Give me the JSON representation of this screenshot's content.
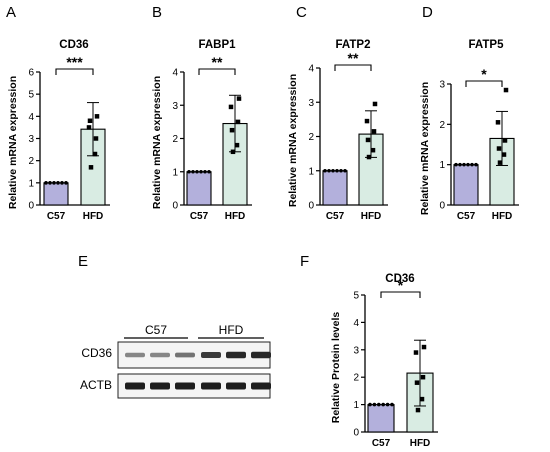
{
  "chart_data": [
    {
      "panel": "A",
      "type": "bar",
      "title": "CD36",
      "ylabel": "Relative mRNA expression",
      "categories": [
        "C57",
        "HFD"
      ],
      "values": [
        1.0,
        3.42
      ],
      "error": [
        0.0,
        1.2
      ],
      "points": [
        [
          1,
          1,
          1,
          1,
          1,
          1
        ],
        [
          4.0,
          3.5,
          3.0,
          3.8,
          2.3,
          1.7
        ]
      ],
      "ylim": [
        0,
        6
      ],
      "yticks": [
        "0",
        "1",
        "2",
        "3",
        "4",
        "5",
        "6"
      ],
      "significance": "***",
      "colors": [
        "#b3b0dc",
        "#d9ece3"
      ]
    },
    {
      "panel": "B",
      "type": "bar",
      "title": "FABP1",
      "ylabel": "Relative mRNA expression",
      "categories": [
        "C57",
        "HFD"
      ],
      "values": [
        1.0,
        2.45
      ],
      "error": [
        0.0,
        0.85
      ],
      "points": [
        [
          1,
          1,
          1,
          1,
          1,
          1
        ],
        [
          3.2,
          2.95,
          2.5,
          2.25,
          1.8,
          1.6
        ]
      ],
      "ylim": [
        0,
        4
      ],
      "yticks": [
        "0",
        "1",
        "2",
        "3",
        "4"
      ],
      "significance": "**",
      "colors": [
        "#b3b0dc",
        "#d9ece3"
      ]
    },
    {
      "panel": "C",
      "type": "bar",
      "title": "FATP2",
      "ylabel": "Relative mRNA expression",
      "categories": [
        "C57",
        "HFD"
      ],
      "values": [
        1.0,
        2.07
      ],
      "error": [
        0.0,
        0.68
      ],
      "points": [
        [
          1,
          1,
          1,
          1,
          1,
          1
        ],
        [
          2.95,
          2.45,
          2.15,
          1.9,
          1.6,
          1.4
        ]
      ],
      "ylim": [
        0,
        4
      ],
      "yticks": [
        "0",
        "1",
        "2",
        "3",
        "4"
      ],
      "significance": "**",
      "colors": [
        "#b3b0dc",
        "#d9ece3"
      ]
    },
    {
      "panel": "D",
      "type": "bar",
      "title": "FATP5",
      "ylabel": "Relative mRNA expression",
      "categories": [
        "C57",
        "HFD"
      ],
      "values": [
        1.0,
        1.65
      ],
      "error": [
        0.0,
        0.67
      ],
      "points": [
        [
          1,
          1,
          1,
          1,
          1,
          1
        ],
        [
          2.85,
          2.05,
          1.6,
          1.4,
          1.25,
          1.05
        ]
      ],
      "ylim": [
        0,
        3
      ],
      "yticks": [
        "0",
        "1",
        "2",
        "3"
      ],
      "significance": "*",
      "colors": [
        "#b3b0dc",
        "#d9ece3"
      ]
    },
    {
      "panel": "F",
      "type": "bar",
      "title": "CD36",
      "ylabel": "Relative Protein levels",
      "categories": [
        "C57",
        "HFD"
      ],
      "values": [
        1.0,
        2.15
      ],
      "error": [
        0.0,
        1.2
      ],
      "points": [
        [
          1,
          1,
          1,
          1,
          1,
          1
        ],
        [
          3.1,
          2.9,
          2.0,
          1.8,
          1.2,
          0.8
        ]
      ],
      "ylim": [
        0,
        5
      ],
      "yticks": [
        "0",
        "1",
        "2",
        "3",
        "4",
        "5"
      ],
      "significance": "*",
      "colors": [
        "#b3b0dc",
        "#d9ece3"
      ]
    }
  ],
  "blot": {
    "panel": "E",
    "groups": [
      "C57",
      "HFD"
    ],
    "rows": [
      {
        "label": "CD36",
        "intensities": [
          0.35,
          0.35,
          0.45,
          0.75,
          0.85,
          0.85
        ]
      },
      {
        "label": "ACTB",
        "intensities": [
          0.9,
          0.9,
          0.9,
          0.9,
          0.9,
          0.9
        ]
      }
    ]
  }
}
